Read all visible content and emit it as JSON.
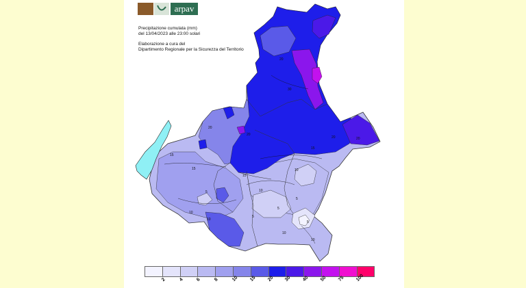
{
  "header": {
    "logo_text": "arpav",
    "title_line1": "Precipitazione cumulata (mm)",
    "title_line2": "del 13/04/2023 alle 23:00 solari",
    "credit_line1": "Elaborazione a cura del",
    "credit_line2": "Dipartimento Regionale per la Sicurezza del Territorio"
  },
  "legend": {
    "colors": [
      "#f3f3ff",
      "#e4e4fb",
      "#d0d0f6",
      "#babaf2",
      "#a0a0ef",
      "#8585ea",
      "#5a5ae8",
      "#1e1eea",
      "#4b19e8",
      "#8b16ec",
      "#c311ee",
      "#f00fd0",
      "#ff006a"
    ],
    "tick_labels": [
      "2",
      "4",
      "6",
      "8",
      "10",
      "15",
      "20",
      "30",
      "40",
      "50",
      "75",
      "100"
    ]
  },
  "map": {
    "contour_labels": [
      "20",
      "15",
      "10",
      "5",
      "20",
      "30",
      "10",
      "15",
      "5",
      "10",
      "20",
      "15",
      "10",
      "5",
      "5",
      "20",
      "20",
      "10",
      "10",
      "5",
      "15"
    ]
  }
}
